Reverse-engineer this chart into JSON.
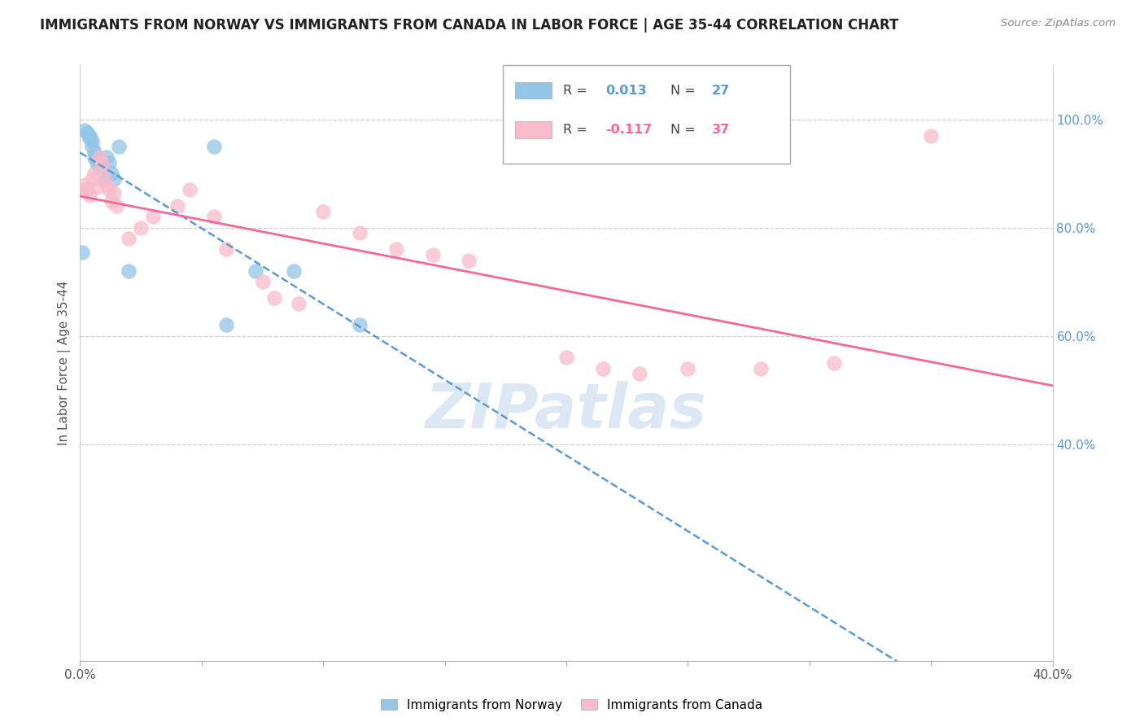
{
  "title": "IMMIGRANTS FROM NORWAY VS IMMIGRANTS FROM CANADA IN LABOR FORCE | AGE 35-44 CORRELATION CHART",
  "source": "Source: ZipAtlas.com",
  "ylabel": "In Labor Force | Age 35-44",
  "xlim": [
    0.0,
    0.4
  ],
  "ylim": [
    0.0,
    1.1
  ],
  "right_ytick_labels": [
    "100.0%",
    "80.0%",
    "60.0%",
    "40.0%"
  ],
  "right_ytick_positions": [
    1.0,
    0.8,
    0.6,
    0.4
  ],
  "norway_x": [
    0.001,
    0.002,
    0.003,
    0.004,
    0.004,
    0.005,
    0.005,
    0.006,
    0.006,
    0.007,
    0.007,
    0.008,
    0.008,
    0.009,
    0.01,
    0.01,
    0.011,
    0.012,
    0.013,
    0.014,
    0.016,
    0.02,
    0.055,
    0.06,
    0.072,
    0.088,
    0.115
  ],
  "norway_y": [
    0.755,
    0.98,
    0.975,
    0.97,
    0.965,
    0.96,
    0.95,
    0.94,
    0.93,
    0.93,
    0.92,
    0.915,
    0.91,
    0.92,
    0.9,
    0.89,
    0.93,
    0.92,
    0.9,
    0.89,
    0.95,
    0.72,
    0.95,
    0.62,
    0.72,
    0.72,
    0.62
  ],
  "canada_x": [
    0.001,
    0.002,
    0.003,
    0.004,
    0.005,
    0.006,
    0.007,
    0.008,
    0.009,
    0.01,
    0.011,
    0.012,
    0.013,
    0.014,
    0.015,
    0.02,
    0.025,
    0.03,
    0.04,
    0.045,
    0.055,
    0.06,
    0.075,
    0.08,
    0.09,
    0.1,
    0.115,
    0.13,
    0.145,
    0.16,
    0.2,
    0.215,
    0.23,
    0.25,
    0.28,
    0.31,
    0.35
  ],
  "canada_y": [
    0.87,
    0.88,
    0.87,
    0.86,
    0.89,
    0.9,
    0.875,
    0.93,
    0.92,
    0.9,
    0.88,
    0.87,
    0.85,
    0.865,
    0.84,
    0.78,
    0.8,
    0.82,
    0.84,
    0.87,
    0.82,
    0.76,
    0.7,
    0.67,
    0.66,
    0.83,
    0.79,
    0.76,
    0.75,
    0.74,
    0.56,
    0.54,
    0.53,
    0.54,
    0.54,
    0.55,
    0.97
  ],
  "norway_color": "#92C5E8",
  "canada_color": "#F9BBCC",
  "norway_line_color": "#5B9BD5",
  "canada_line_color": "#F4699A",
  "norway_R": 0.013,
  "norway_N": 27,
  "canada_R": -0.117,
  "canada_N": 37,
  "watermark_text": "ZIPatlas",
  "background_color": "#ffffff",
  "grid_color": "#d0d0d0"
}
